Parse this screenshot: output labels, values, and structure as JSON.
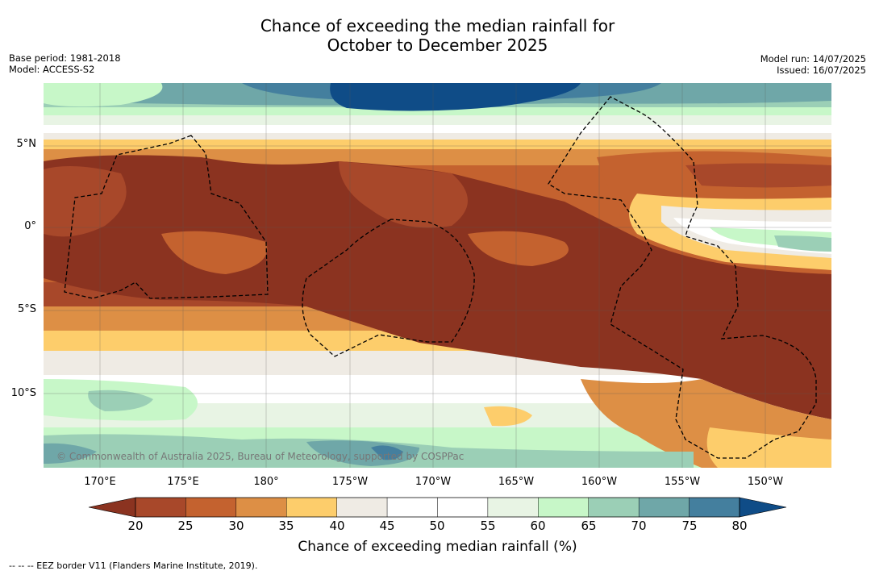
{
  "title": {
    "line1": "Chance of exceeding the median rainfall for",
    "line2": "October to December 2025"
  },
  "meta": {
    "base_period": "Base period: 1981-2018",
    "model": "Model: ACCESS-S2",
    "model_run": "Model run: 14/07/2025",
    "issued": "Issued: 16/07/2025"
  },
  "map": {
    "latitude_labels": [
      "5°N",
      "0°",
      "5°S",
      "10°S"
    ],
    "longitude_labels": [
      "170°E",
      "175°E",
      "180°",
      "175°W",
      "170°W",
      "165°W",
      "160°W",
      "155°W",
      "150°W"
    ],
    "copyright": "© Commonwealth of Australia 2025, Bureau of Meteorology, supported by COSPPac",
    "border_style": "dashed",
    "gridlines": true
  },
  "colorbar": {
    "label": "Chance of exceeding median rainfall (%)",
    "ticks": [
      "20",
      "25",
      "30",
      "35",
      "40",
      "45",
      "50",
      "55",
      "60",
      "65",
      "70",
      "75",
      "80"
    ],
    "colors": [
      "#8b3320",
      "#a8482a",
      "#c4622f",
      "#dd8f45",
      "#fdcd6b",
      "#efebe4",
      "#ffffff",
      "#ffffff",
      "#e8f4e4",
      "#c7f7c8",
      "#9bcfb6",
      "#6fa7a8",
      "#447f9e",
      "#0f4c87"
    ]
  },
  "footnote": "--  --  -- EEZ border V11 (Flanders Marine Institute, 2019)."
}
